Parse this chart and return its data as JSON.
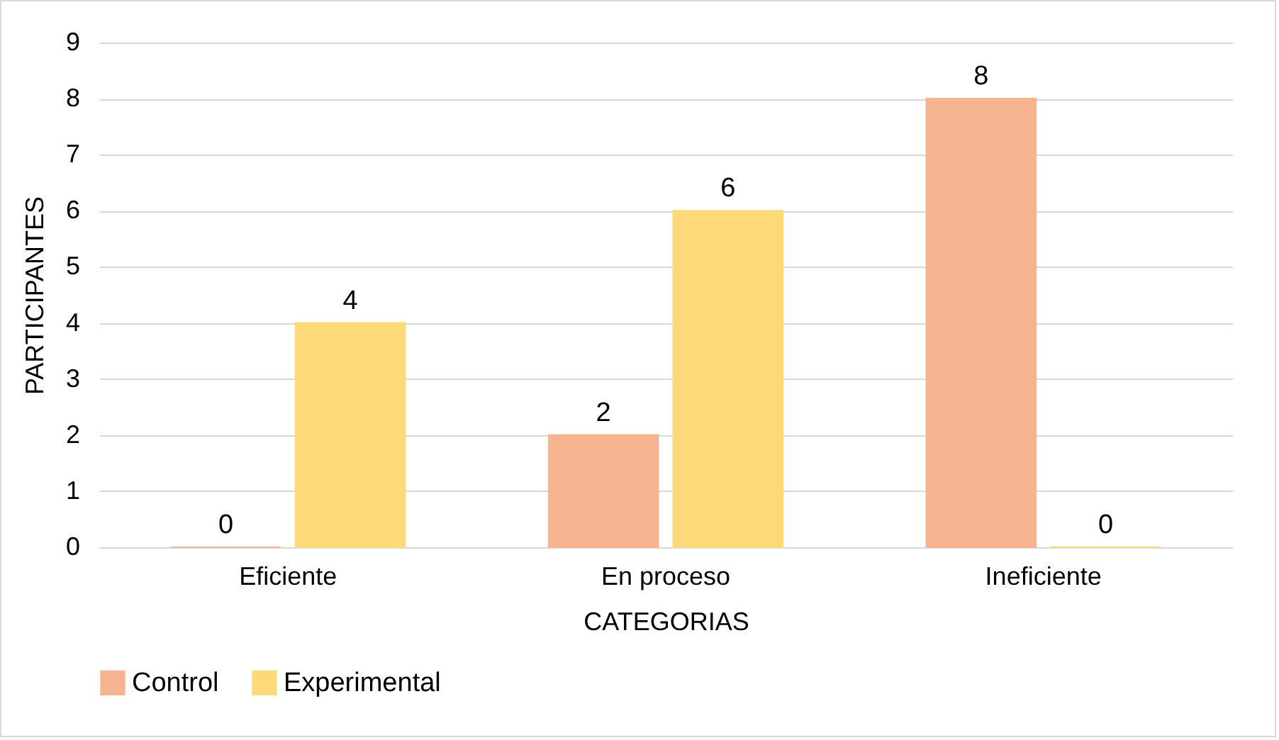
{
  "chart_data": {
    "type": "bar",
    "xlabel": "CATEGORIAS",
    "ylabel": "PARTICIPANTES",
    "categories": [
      "Eficiente",
      "En proceso",
      "Ineficiente"
    ],
    "series": [
      {
        "name": "Control",
        "color": "#f5b38f",
        "values": [
          0,
          2,
          8
        ]
      },
      {
        "name": "Experimental",
        "color": "#fed97a",
        "values": [
          4,
          6,
          0
        ]
      }
    ],
    "ylim": [
      0,
      9
    ],
    "yticks": [
      0,
      1,
      2,
      3,
      4,
      5,
      6,
      7,
      8,
      9
    ],
    "grid": "y",
    "legend": "bottom",
    "data_labels": true
  }
}
